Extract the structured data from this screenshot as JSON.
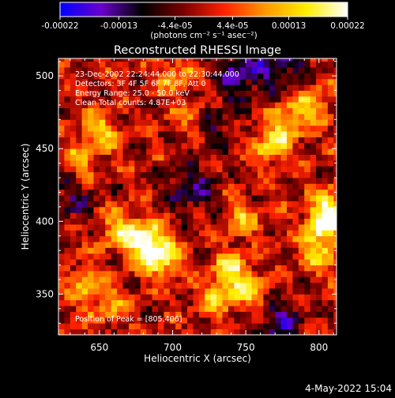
{
  "chart_data": {
    "type": "heatmap",
    "title": "Reconstructed RHESSI Image",
    "xlabel": "Heliocentric X (arcsec)",
    "ylabel": "Heliocentric Y (arcsec)",
    "xlim": [
      622,
      812
    ],
    "ylim": [
      322,
      512
    ],
    "x_ticks": [
      650,
      700,
      750,
      800
    ],
    "y_ticks": [
      350,
      400,
      450,
      500
    ],
    "x_tick_labels": [
      "650",
      "700",
      "750",
      "800"
    ],
    "y_tick_labels": [
      "350",
      "400",
      "450",
      "500"
    ],
    "pixel_size_arcsec": 4,
    "colorbar": {
      "vmin": -0.00022,
      "vmax": 0.00022,
      "tick_values": [
        -0.00022,
        -0.00013,
        -4.4e-05,
        4.4e-05,
        0.00013,
        0.00022
      ],
      "tick_labels": [
        "-0.00022",
        "-0.00013",
        "-4.4e-05",
        "4.4e-05",
        "0.00013",
        "0.00022"
      ],
      "units": "(photons cm⁻² s⁻¹ asec⁻²)",
      "colormap": [
        "#0000ff",
        "#6a00cc",
        "#000000",
        "#7a0000",
        "#ff2200",
        "#ff9900",
        "#ffee00",
        "#ffffff"
      ]
    },
    "annotations": [
      "23-Dec-2002 22:24:44.000 to 22:30:44.000",
      "Detectors: 3F 4F 5F 6F 7F 8F, Att 0",
      "Energy Range: 25.0 - 50.0 keV",
      "Clean     Total counts: 4.87E+03"
    ],
    "peak_label": "Position of Peak = [805,406]",
    "peak_position": [
      805,
      406
    ],
    "hotspots": [
      {
        "x": 680,
        "y": 385,
        "v": 0.00022
      },
      {
        "x": 690,
        "y": 372,
        "v": 0.00018
      },
      {
        "x": 662,
        "y": 392,
        "v": 0.00015
      },
      {
        "x": 738,
        "y": 365,
        "v": 0.00017
      },
      {
        "x": 752,
        "y": 348,
        "v": 0.00014
      },
      {
        "x": 728,
        "y": 345,
        "v": 0.00012
      },
      {
        "x": 765,
        "y": 450,
        "v": 0.00016
      },
      {
        "x": 778,
        "y": 468,
        "v": 0.00013
      },
      {
        "x": 795,
        "y": 480,
        "v": 0.00012
      },
      {
        "x": 805,
        "y": 406,
        "v": 0.00022
      },
      {
        "x": 800,
        "y": 392,
        "v": 0.00014
      },
      {
        "x": 798,
        "y": 375,
        "v": 0.00012
      },
      {
        "x": 648,
        "y": 460,
        "v": 0.00013
      },
      {
        "x": 635,
        "y": 440,
        "v": 0.00011
      },
      {
        "x": 700,
        "y": 500,
        "v": 0.00011
      },
      {
        "x": 712,
        "y": 470,
        "v": 0.0001
      },
      {
        "x": 640,
        "y": 355,
        "v": 0.00012
      },
      {
        "x": 655,
        "y": 340,
        "v": 0.0001
      },
      {
        "x": 745,
        "y": 400,
        "v": 0.00011
      }
    ],
    "coldspots": [
      {
        "x": 745,
        "y": 500,
        "v": -0.00013
      },
      {
        "x": 775,
        "y": 505,
        "v": -0.00011
      },
      {
        "x": 768,
        "y": 330,
        "v": -0.00012
      },
      {
        "x": 710,
        "y": 420,
        "v": -0.0001
      },
      {
        "x": 725,
        "y": 465,
        "v": -9e-05
      },
      {
        "x": 630,
        "y": 415,
        "v": -8e-05
      }
    ]
  },
  "footer": {
    "timestamp": "4-May-2022 15:04"
  }
}
